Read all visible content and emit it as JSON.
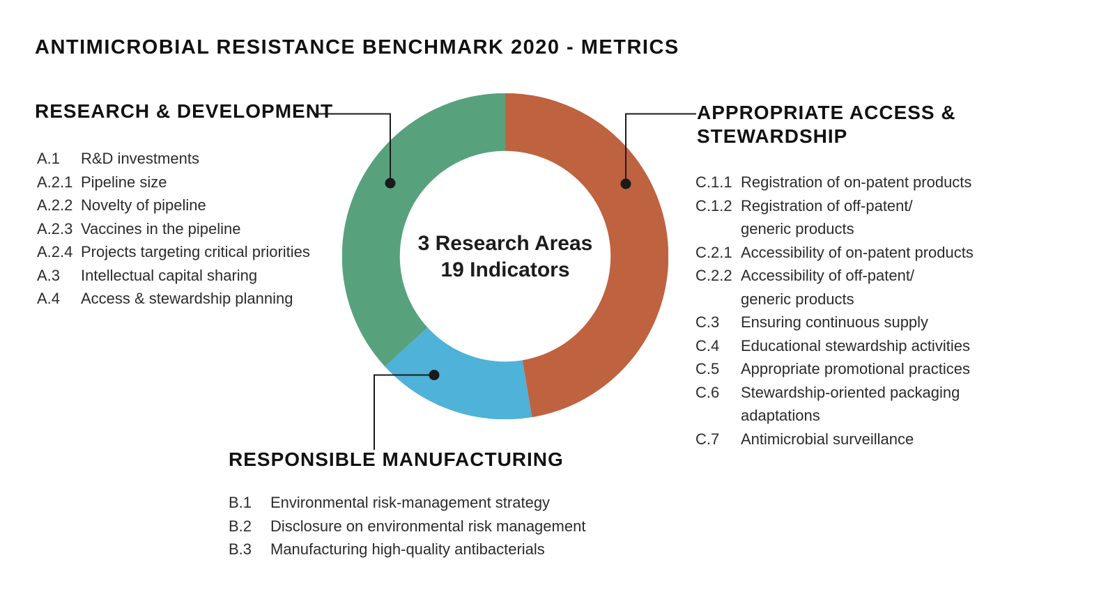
{
  "title": "ANTIMICROBIAL RESISTANCE BENCHMARK 2020 - METRICS",
  "colors": {
    "green": "#57a27d",
    "orange": "#bf6240",
    "blue": "#4fb2d8",
    "callout_line": "#1a1a1a",
    "text": "#111111"
  },
  "center_label": {
    "line1": "3 Research Areas",
    "line2": "19 Indicators"
  },
  "sections": {
    "rnd": {
      "title": "RESEARCH & DEVELOPMENT",
      "rows": [
        {
          "id": "A.1",
          "text": "R&D investments"
        },
        {
          "id": "A.2.1",
          "text": "Pipeline size"
        },
        {
          "id": "A.2.2",
          "text": "Novelty of pipeline"
        },
        {
          "id": "A.2.3",
          "text": "Vaccines in the pipeline"
        },
        {
          "id": "A.2.4",
          "text": "Projects targeting critical priorities"
        },
        {
          "id": "A.3",
          "text": "Intellectual capital sharing"
        },
        {
          "id": "A.4",
          "text": "Access & stewardship planning"
        }
      ]
    },
    "access": {
      "title_line1": "APPROPRIATE ACCESS &",
      "title_line2": "STEWARDSHIP",
      "rows": [
        {
          "id": "C.1.1",
          "text": "Registration of on-patent products"
        },
        {
          "id": "C.1.2",
          "text": "Registration of off-patent/"
        },
        {
          "id": "",
          "text": "generic products"
        },
        {
          "id": "C.2.1",
          "text": "Accessibility of on-patent products"
        },
        {
          "id": "C.2.2",
          "text": "Accessibility of off-patent/"
        },
        {
          "id": "",
          "text": "generic products"
        },
        {
          "id": "C.3",
          "text": "Ensuring continuous supply"
        },
        {
          "id": "C.4",
          "text": "Educational stewardship activities"
        },
        {
          "id": "C.5",
          "text": "Appropriate promotional practices"
        },
        {
          "id": "C.6",
          "text": "Stewardship-oriented packaging"
        },
        {
          "id": "",
          "text": "adaptations"
        },
        {
          "id": "C.7",
          "text": "Antimicrobial surveillance"
        }
      ]
    },
    "manufacturing": {
      "title": "RESPONSIBLE MANUFACTURING",
      "rows": [
        {
          "id": "B.1",
          "text": "Environmental risk-management strategy"
        },
        {
          "id": "B.2",
          "text": "Disclosure on environmental risk management"
        },
        {
          "id": "B.3",
          "text": "Manufacturing high-quality antibacterials"
        }
      ]
    }
  },
  "chart_data": {
    "type": "pie",
    "subtype": "donut",
    "title": "3 Research Areas / 19 Indicators",
    "total": 19,
    "units": "indicators",
    "start_angle": "12 o'clock",
    "direction": "clockwise",
    "segments": [
      {
        "name": "Appropriate Access & Stewardship",
        "value": 9,
        "fraction": 0.4737,
        "color": "#bf6240"
      },
      {
        "name": "Responsible Manufacturing",
        "value": 3,
        "fraction": 0.1579,
        "color": "#4fb2d8"
      },
      {
        "name": "Research & Development",
        "value": 7,
        "fraction": 0.3684,
        "color": "#57a27d"
      }
    ]
  }
}
